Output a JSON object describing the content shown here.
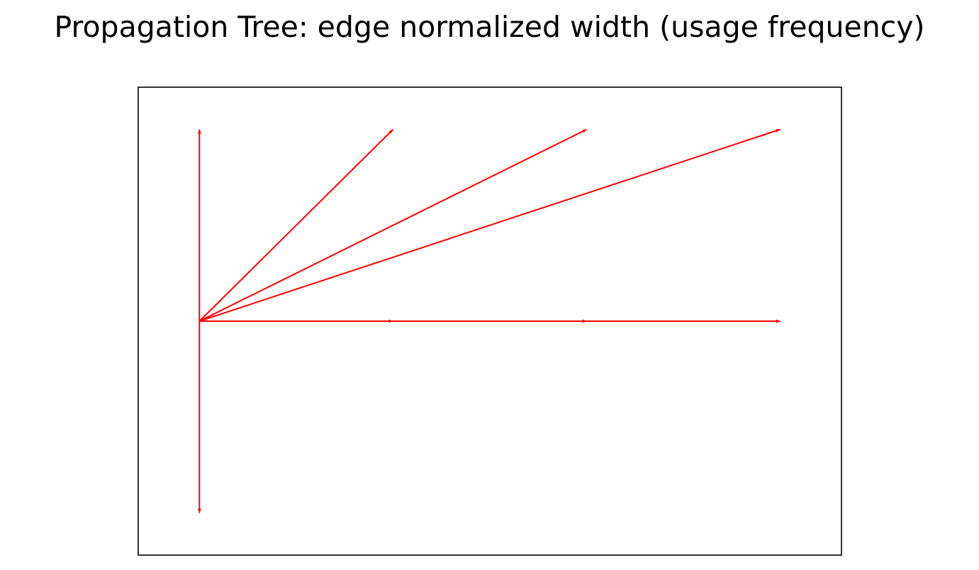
{
  "title": "Propagation Tree: edge normalized width (usage frequency)",
  "colors": {
    "edge": "#ff0000",
    "frame": "#000000",
    "background": "#ffffff"
  },
  "chart_data": {
    "type": "network",
    "title": "Propagation Tree: edge normalized width (usage frequency)",
    "directed": true,
    "axes_visible": false,
    "nodes": [
      {
        "id": "root",
        "x": 0,
        "y": 0
      },
      {
        "id": "up",
        "x": 0,
        "y": 1
      },
      {
        "id": "down",
        "x": 0,
        "y": -1
      },
      {
        "id": "a1",
        "x": 1,
        "y": 1
      },
      {
        "id": "a2",
        "x": 2,
        "y": 1
      },
      {
        "id": "a3",
        "x": 3,
        "y": 1
      },
      {
        "id": "h1",
        "x": 1,
        "y": 0
      },
      {
        "id": "h2",
        "x": 2,
        "y": 0
      },
      {
        "id": "h3",
        "x": 3,
        "y": 0
      }
    ],
    "edges": [
      {
        "from": "root",
        "to": "up",
        "width": 1.0
      },
      {
        "from": "root",
        "to": "down",
        "width": 1.0
      },
      {
        "from": "root",
        "to": "a1",
        "width": 1.0
      },
      {
        "from": "root",
        "to": "a2",
        "width": 1.0
      },
      {
        "from": "root",
        "to": "a3",
        "width": 1.0
      },
      {
        "from": "root",
        "to": "h1",
        "width": 1.0
      },
      {
        "from": "h1",
        "to": "h2",
        "width": 1.0
      },
      {
        "from": "h2",
        "to": "h3",
        "width": 1.0
      }
    ],
    "xlim": [
      -0.316,
      3.316
    ],
    "ylim": [
      -1.22,
      1.22
    ]
  }
}
